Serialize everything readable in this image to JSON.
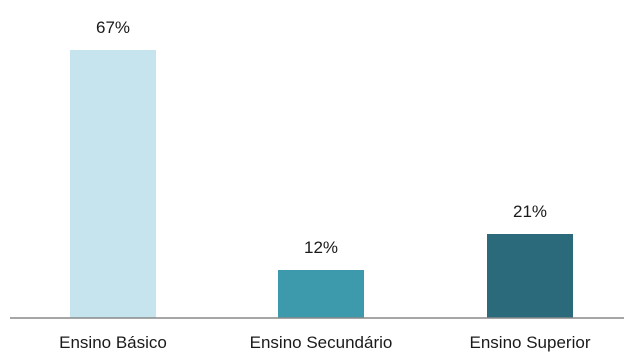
{
  "chart_data": {
    "type": "bar",
    "categories": [
      "Ensino Básico",
      "Ensino Secundário",
      "Ensino Superior"
    ],
    "values": [
      67,
      12,
      21
    ],
    "data_labels": [
      "67%",
      "12%",
      "21%"
    ],
    "unit": "%",
    "title": "",
    "xlabel": "",
    "ylabel": "",
    "ylim": [
      0,
      67
    ],
    "grid": false,
    "legend": "none",
    "colors": [
      "#c5e4ee",
      "#3d9aad",
      "#2a6a7a"
    ],
    "axis_color": "#888888"
  }
}
